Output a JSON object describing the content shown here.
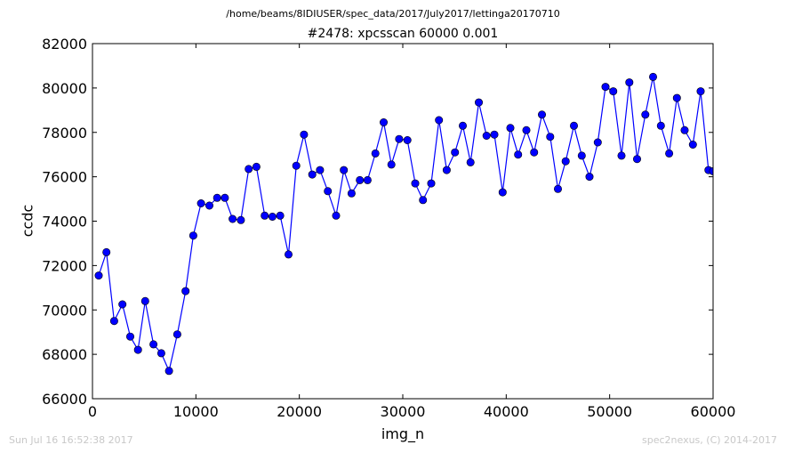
{
  "header": {
    "path": "/home/beams/8IDIUSER/spec_data/2017/July2017/lettinga20170710",
    "title": "#2478: xpcsscan 60000 0.001"
  },
  "footer": {
    "timestamp": "Sun Jul 16 16:52:38 2017",
    "credit": "spec2nexus, (C) 2014-2017"
  },
  "colors": {
    "series": "#0000ff",
    "marker_face": "#0000ff",
    "marker_edge": "#000000"
  },
  "chart_data": {
    "type": "line",
    "title": "#2478: xpcsscan 60000 0.001",
    "xlabel": "img_n",
    "ylabel": "ccdc",
    "xlim": [
      0,
      60000
    ],
    "ylim": [
      66000,
      82000
    ],
    "xticks": [
      0,
      10000,
      20000,
      30000,
      40000,
      50000,
      60000
    ],
    "yticks": [
      66000,
      68000,
      70000,
      72000,
      74000,
      76000,
      78000,
      80000,
      82000
    ],
    "grid": false,
    "legend": "none",
    "series": [
      {
        "x": [
          600,
          1350,
          2100,
          2900,
          3650,
          4400,
          5100,
          5900,
          6650,
          7400,
          8200,
          9000,
          9750,
          10500,
          11300,
          12050,
          12800,
          13550,
          14350,
          15100,
          15850,
          16650,
          17400,
          18150,
          18950,
          19700,
          20450,
          21250,
          22000,
          22750,
          23550,
          24300,
          25050,
          25850,
          26600,
          27350,
          28150,
          28900,
          29650,
          30450,
          31200,
          31950,
          32750,
          33500,
          34250,
          35050,
          35800,
          36550,
          37350,
          38100,
          38850,
          39650,
          40400,
          41150,
          41950,
          42700,
          43450,
          44250,
          45000,
          45750,
          46550,
          47300,
          48050,
          48850,
          49600,
          50350,
          51150,
          51900,
          52650,
          53450,
          54200,
          54950,
          55750,
          56500,
          57250,
          58050,
          58800,
          59550,
          60000
        ],
        "y": [
          71550,
          72600,
          69500,
          70250,
          68800,
          68200,
          70400,
          68450,
          68050,
          67250,
          68900,
          70850,
          73350,
          74800,
          74700,
          75050,
          75050,
          74100,
          74050,
          76350,
          76450,
          74250,
          74200,
          74250,
          72500,
          76500,
          77900,
          76100,
          76300,
          75350,
          74250,
          76300,
          75250,
          75850,
          75850,
          77050,
          78450,
          76550,
          77700,
          77650,
          75700,
          74950,
          75700,
          78550,
          76300,
          77100,
          78300,
          76650,
          79350,
          77850,
          77900,
          75300,
          78200,
          77000,
          78100,
          77100,
          78800,
          77800,
          75450,
          76700,
          78300,
          76950,
          76000,
          77550,
          80050,
          79850,
          76950,
          80250,
          76800,
          78800,
          80500,
          78300,
          77050,
          79550,
          78100,
          77450,
          79850,
          76300,
          76250
        ]
      }
    ]
  }
}
